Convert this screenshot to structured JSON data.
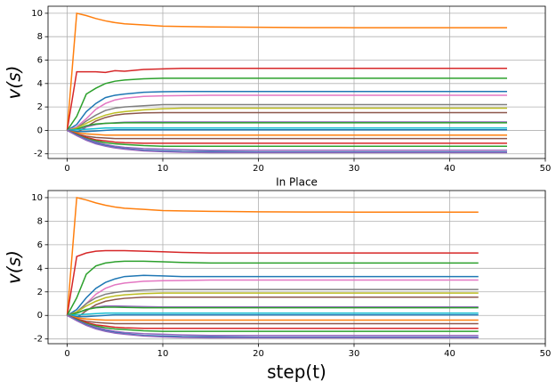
{
  "chart_data": [
    {
      "type": "line",
      "ylabel": "v(s)",
      "x": [
        0,
        1,
        2,
        3,
        4,
        5,
        6,
        8,
        10,
        12,
        15,
        20,
        25,
        30,
        35,
        40,
        46
      ],
      "xlim": [
        -2,
        50
      ],
      "ylim": [
        -2.4,
        10.6
      ],
      "xticks": [
        0,
        10,
        20,
        30,
        40,
        50
      ],
      "yticks": [
        -2,
        0,
        2,
        4,
        6,
        8,
        10
      ],
      "grid": true,
      "series": [
        {
          "color": "#ff7f0e",
          "values": [
            0,
            10,
            9.8,
            9.55,
            9.35,
            9.2,
            9.1,
            9.0,
            8.9,
            8.87,
            8.83,
            8.8,
            8.78,
            8.77,
            8.77,
            8.77,
            8.77
          ]
        },
        {
          "color": "#d62728",
          "values": [
            0,
            5,
            5,
            5,
            4.95,
            5.1,
            5.05,
            5.2,
            5.25,
            5.3,
            5.3,
            5.3,
            5.3,
            5.3,
            5.3,
            5.3,
            5.3
          ]
        },
        {
          "color": "#2ca02c",
          "values": [
            0,
            1.2,
            3.1,
            3.6,
            4.0,
            4.2,
            4.3,
            4.4,
            4.45,
            4.45,
            4.45,
            4.45,
            4.45,
            4.45,
            4.45,
            4.45,
            4.45
          ]
        },
        {
          "color": "#1f77b4",
          "values": [
            0,
            0.5,
            1.6,
            2.3,
            2.8,
            3.0,
            3.1,
            3.25,
            3.3,
            3.32,
            3.32,
            3.32,
            3.32,
            3.32,
            3.32,
            3.32,
            3.32
          ]
        },
        {
          "color": "#e377c2",
          "values": [
            0,
            0.3,
            1.0,
            1.8,
            2.3,
            2.6,
            2.75,
            2.9,
            2.95,
            2.97,
            3,
            3,
            3,
            3,
            3,
            3,
            3
          ]
        },
        {
          "color": "#7f7f7f",
          "values": [
            0,
            0.2,
            0.8,
            1.3,
            1.7,
            1.9,
            2.0,
            2.1,
            2.2,
            2.2,
            2.2,
            2.2,
            2.2,
            2.2,
            2.2,
            2.2,
            2.2
          ]
        },
        {
          "color": "#bcbd22",
          "values": [
            0,
            0.2,
            0.6,
            1.0,
            1.3,
            1.5,
            1.6,
            1.75,
            1.85,
            1.9,
            1.9,
            1.9,
            1.9,
            1.9,
            1.9,
            1.9,
            1.9
          ]
        },
        {
          "color": "#8c564b",
          "values": [
            0,
            -0.2,
            0.3,
            0.8,
            1.1,
            1.3,
            1.4,
            1.5,
            1.52,
            1.52,
            1.52,
            1.52,
            1.52,
            1.52,
            1.52,
            1.52,
            1.52
          ]
        },
        {
          "color": "#9467bd",
          "values": [
            0,
            0.1,
            0.3,
            0.5,
            0.6,
            0.65,
            0.7,
            0.72,
            0.72,
            0.72,
            0.72,
            0.72,
            0.72,
            0.72,
            0.72,
            0.72,
            0.72
          ]
        },
        {
          "color": "#2ca02c",
          "values": [
            0,
            0.1,
            0.4,
            0.55,
            0.6,
            0.62,
            0.65,
            0.65,
            0.65,
            0.65,
            0.65,
            0.65,
            0.65,
            0.65,
            0.65,
            0.65,
            0.65
          ]
        },
        {
          "color": "#17becf",
          "values": [
            0,
            0.05,
            0.1,
            0.15,
            0.2,
            0.2,
            0.2,
            0.2,
            0.2,
            0.2,
            0.2,
            0.2,
            0.2,
            0.2,
            0.2,
            0.2,
            0.2
          ]
        },
        {
          "color": "#1f77b4",
          "values": [
            0,
            -0.1,
            -0.1,
            -0.05,
            0,
            0.05,
            0.05,
            0.05,
            0.05,
            0.05,
            0.05,
            0.05,
            0.05,
            0.05,
            0.05,
            0.05,
            0.05
          ]
        },
        {
          "color": "#ff7f0e",
          "values": [
            0,
            -0.2,
            -0.3,
            -0.35,
            -0.4,
            -0.4,
            -0.4,
            -0.4,
            -0.4,
            -0.4,
            -0.4,
            -0.4,
            -0.4,
            -0.4,
            -0.4,
            -0.4,
            -0.4
          ]
        },
        {
          "color": "#8c564b",
          "values": [
            0,
            -0.3,
            -0.5,
            -0.6,
            -0.65,
            -0.7,
            -0.7,
            -0.7,
            -0.7,
            -0.7,
            -0.7,
            -0.7,
            -0.7,
            -0.7,
            -0.7,
            -0.7,
            -0.7
          ]
        },
        {
          "color": "#d62728",
          "values": [
            0,
            -0.3,
            -0.6,
            -0.8,
            -0.9,
            -1.0,
            -1.05,
            -1.1,
            -1.1,
            -1.1,
            -1.1,
            -1.1,
            -1.1,
            -1.1,
            -1.1,
            -1.1,
            -1.1
          ]
        },
        {
          "color": "#2ca02c",
          "values": [
            0,
            -0.35,
            -0.7,
            -0.9,
            -1.05,
            -1.15,
            -1.2,
            -1.3,
            -1.35,
            -1.35,
            -1.35,
            -1.35,
            -1.35,
            -1.35,
            -1.35,
            -1.35,
            -1.35
          ]
        },
        {
          "color": "#9467bd",
          "values": [
            0,
            -0.4,
            -0.75,
            -1.0,
            -1.2,
            -1.35,
            -1.45,
            -1.55,
            -1.6,
            -1.65,
            -1.7,
            -1.7,
            -1.7,
            -1.7,
            -1.7,
            -1.7,
            -1.7
          ]
        },
        {
          "color": "#1f77b4",
          "values": [
            0,
            -0.4,
            -0.8,
            -1.1,
            -1.3,
            -1.45,
            -1.55,
            -1.7,
            -1.75,
            -1.8,
            -1.82,
            -1.85,
            -1.85,
            -1.85,
            -1.85,
            -1.85,
            -1.85
          ]
        },
        {
          "color": "#9467bd",
          "values": [
            0,
            -0.45,
            -0.85,
            -1.15,
            -1.35,
            -1.5,
            -1.6,
            -1.75,
            -1.82,
            -1.87,
            -1.9,
            -1.9,
            -1.9,
            -1.9,
            -1.9,
            -1.9,
            -1.9
          ]
        }
      ]
    },
    {
      "type": "line",
      "title": "In Place",
      "ylabel": "v(s)",
      "xlabel": "step(t)",
      "x": [
        0,
        1,
        2,
        3,
        4,
        5,
        6,
        8,
        10,
        12,
        15,
        20,
        25,
        30,
        35,
        40,
        43
      ],
      "xlim": [
        -2,
        50
      ],
      "ylim": [
        -2.4,
        10.6
      ],
      "xticks": [
        0,
        10,
        20,
        30,
        40,
        50
      ],
      "yticks": [
        -2,
        0,
        2,
        4,
        6,
        8,
        10
      ],
      "grid": true,
      "series": [
        {
          "color": "#ff7f0e",
          "values": [
            0,
            10,
            9.8,
            9.55,
            9.35,
            9.2,
            9.1,
            9.0,
            8.9,
            8.87,
            8.83,
            8.8,
            8.78,
            8.77,
            8.77,
            8.77,
            8.77
          ]
        },
        {
          "color": "#d62728",
          "values": [
            0,
            5,
            5.3,
            5.45,
            5.5,
            5.5,
            5.5,
            5.45,
            5.4,
            5.35,
            5.3,
            5.3,
            5.3,
            5.3,
            5.3,
            5.3,
            5.3
          ]
        },
        {
          "color": "#2ca02c",
          "values": [
            0,
            1.5,
            3.5,
            4.2,
            4.45,
            4.55,
            4.6,
            4.6,
            4.55,
            4.5,
            4.45,
            4.45,
            4.45,
            4.45,
            4.45,
            4.45,
            4.45
          ]
        },
        {
          "color": "#1f77b4",
          "values": [
            0,
            0.5,
            1.5,
            2.3,
            2.8,
            3.1,
            3.3,
            3.4,
            3.35,
            3.3,
            3.3,
            3.3,
            3.3,
            3.3,
            3.3,
            3.3,
            3.3
          ]
        },
        {
          "color": "#e377c2",
          "values": [
            0,
            0.3,
            1.0,
            1.8,
            2.3,
            2.6,
            2.75,
            2.9,
            2.95,
            2.97,
            3,
            3,
            3,
            3,
            3,
            3,
            3
          ]
        },
        {
          "color": "#7f7f7f",
          "values": [
            0,
            0.3,
            1.0,
            1.5,
            1.8,
            1.95,
            2.05,
            2.15,
            2.2,
            2.2,
            2.2,
            2.2,
            2.2,
            2.2,
            2.2,
            2.2,
            2.2
          ]
        },
        {
          "color": "#bcbd22",
          "values": [
            0,
            0.3,
            0.8,
            1.2,
            1.5,
            1.65,
            1.75,
            1.85,
            1.9,
            1.9,
            1.9,
            1.9,
            1.9,
            1.9,
            1.9,
            1.9,
            1.9
          ]
        },
        {
          "color": "#8c564b",
          "values": [
            0,
            -0.2,
            0.4,
            0.9,
            1.2,
            1.35,
            1.45,
            1.55,
            1.55,
            1.55,
            1.55,
            1.55,
            1.55,
            1.55,
            1.55,
            1.55,
            1.55
          ]
        },
        {
          "color": "#9467bd",
          "values": [
            0,
            0.2,
            0.5,
            0.7,
            0.8,
            0.8,
            0.78,
            0.75,
            0.72,
            0.72,
            0.72,
            0.72,
            0.72,
            0.72,
            0.72,
            0.72,
            0.72
          ]
        },
        {
          "color": "#2ca02c",
          "values": [
            0,
            0.2,
            0.5,
            0.65,
            0.7,
            0.7,
            0.68,
            0.65,
            0.65,
            0.65,
            0.65,
            0.65,
            0.65,
            0.65,
            0.65,
            0.65,
            0.65
          ]
        },
        {
          "color": "#17becf",
          "values": [
            0,
            0.05,
            0.1,
            0.15,
            0.2,
            0.2,
            0.2,
            0.2,
            0.2,
            0.2,
            0.2,
            0.2,
            0.2,
            0.2,
            0.2,
            0.2,
            0.2
          ]
        },
        {
          "color": "#1f77b4",
          "values": [
            0,
            -0.1,
            -0.1,
            -0.05,
            0,
            0.05,
            0.05,
            0.05,
            0.05,
            0.05,
            0.05,
            0.05,
            0.05,
            0.05,
            0.05,
            0.05,
            0.05
          ]
        },
        {
          "color": "#ff7f0e",
          "values": [
            0,
            -0.2,
            -0.3,
            -0.35,
            -0.4,
            -0.4,
            -0.4,
            -0.4,
            -0.4,
            -0.4,
            -0.4,
            -0.4,
            -0.4,
            -0.4,
            -0.4,
            -0.4,
            -0.4
          ]
        },
        {
          "color": "#8c564b",
          "values": [
            0,
            -0.3,
            -0.5,
            -0.6,
            -0.65,
            -0.7,
            -0.7,
            -0.7,
            -0.7,
            -0.7,
            -0.7,
            -0.7,
            -0.7,
            -0.7,
            -0.7,
            -0.7,
            -0.7
          ]
        },
        {
          "color": "#d62728",
          "values": [
            0,
            -0.3,
            -0.6,
            -0.8,
            -0.9,
            -1.0,
            -1.05,
            -1.1,
            -1.1,
            -1.1,
            -1.1,
            -1.1,
            -1.1,
            -1.1,
            -1.1,
            -1.1,
            -1.1
          ]
        },
        {
          "color": "#2ca02c",
          "values": [
            0,
            -0.35,
            -0.7,
            -0.9,
            -1.05,
            -1.15,
            -1.2,
            -1.3,
            -1.35,
            -1.35,
            -1.35,
            -1.35,
            -1.35,
            -1.35,
            -1.35,
            -1.35,
            -1.35
          ]
        },
        {
          "color": "#9467bd",
          "values": [
            0,
            -0.4,
            -0.75,
            -1.0,
            -1.2,
            -1.35,
            -1.45,
            -1.55,
            -1.6,
            -1.65,
            -1.7,
            -1.7,
            -1.7,
            -1.7,
            -1.7,
            -1.7,
            -1.7
          ]
        },
        {
          "color": "#1f77b4",
          "values": [
            0,
            -0.4,
            -0.8,
            -1.1,
            -1.3,
            -1.45,
            -1.55,
            -1.7,
            -1.75,
            -1.8,
            -1.82,
            -1.85,
            -1.85,
            -1.85,
            -1.85,
            -1.85,
            -1.85
          ]
        },
        {
          "color": "#9467bd",
          "values": [
            0,
            -0.45,
            -0.85,
            -1.15,
            -1.35,
            -1.5,
            -1.6,
            -1.75,
            -1.82,
            -1.87,
            -1.9,
            -1.9,
            -1.9,
            -1.9,
            -1.9,
            -1.9,
            -1.9
          ]
        }
      ]
    }
  ]
}
